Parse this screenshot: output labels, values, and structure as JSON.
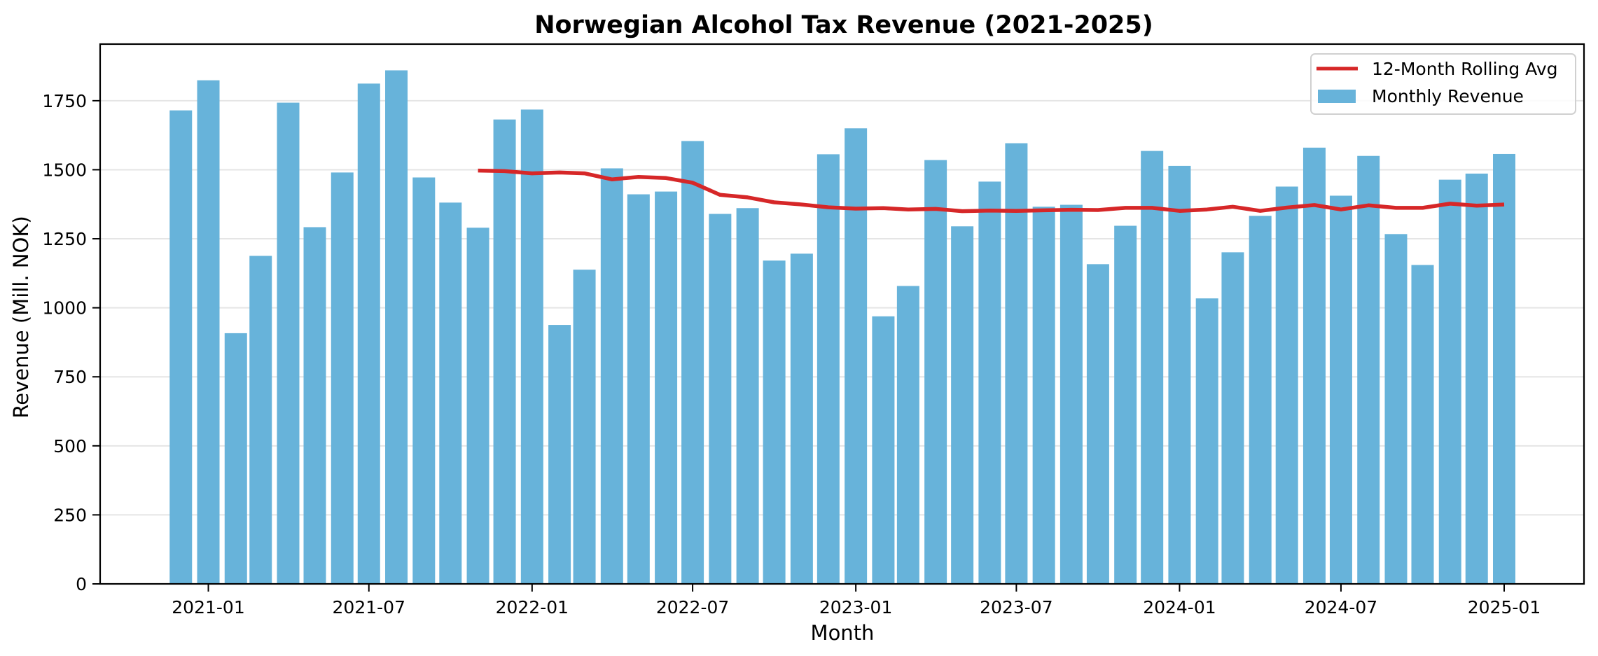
{
  "chart_data": {
    "type": "bar",
    "title": "Norwegian Alcohol Tax Revenue (2021-2025)",
    "xlabel": "Month",
    "ylabel": "Revenue (Mill. NOK)",
    "ylim": [
      0,
      1955
    ],
    "xlim": [
      "2020-09-01",
      "2025-04-01"
    ],
    "grid": "y",
    "legend_position": "top-right",
    "yticks": [
      0,
      250,
      500,
      750,
      1000,
      1250,
      1500,
      1750
    ],
    "ytick_labels": [
      "0",
      "250",
      "500",
      "750",
      "1000",
      "1250",
      "1500",
      "1750"
    ],
    "xticks": [
      "2021-01",
      "2021-07",
      "2022-01",
      "2022-07",
      "2023-01",
      "2023-07",
      "2024-01",
      "2024-07",
      "2025-01"
    ],
    "xtick_labels": [
      "2021-01",
      "2021-07",
      "2022-01",
      "2022-07",
      "2023-01",
      "2023-07",
      "2024-01",
      "2024-07",
      "2025-01"
    ],
    "categories": [
      "2020-12",
      "2021-01",
      "2021-02",
      "2021-03",
      "2021-04",
      "2021-05",
      "2021-06",
      "2021-07",
      "2021-08",
      "2021-09",
      "2021-10",
      "2021-11",
      "2021-12",
      "2022-01",
      "2022-02",
      "2022-03",
      "2022-04",
      "2022-05",
      "2022-06",
      "2022-07",
      "2022-08",
      "2022-09",
      "2022-10",
      "2022-11",
      "2022-12",
      "2023-01",
      "2023-02",
      "2023-03",
      "2023-04",
      "2023-05",
      "2023-06",
      "2023-07",
      "2023-08",
      "2023-09",
      "2023-10",
      "2023-11",
      "2023-12",
      "2024-01",
      "2024-02",
      "2024-03",
      "2024-04",
      "2024-05",
      "2024-06",
      "2024-07",
      "2024-08",
      "2024-09",
      "2024-10",
      "2024-11",
      "2024-12",
      "2025-01"
    ],
    "series": [
      {
        "name": "Monthly Revenue",
        "type": "bar",
        "color": "#67b3da",
        "values": [
          1715,
          1824,
          908,
          1188,
          1743,
          1292,
          1490,
          1812,
          1860,
          1472,
          1381,
          1290,
          1682,
          1718,
          938,
          1138,
          1505,
          1411,
          1421,
          1604,
          1340,
          1361,
          1171,
          1196,
          1556,
          1650,
          969,
          1079,
          1535,
          1295,
          1457,
          1596,
          1366,
          1373,
          1158,
          1297,
          1568,
          1514,
          1034,
          1201,
          1333,
          1439,
          1580,
          1406,
          1550,
          1267,
          1155,
          1464,
          1486,
          1557
        ]
      },
      {
        "name": "12-Month Rolling Avg",
        "type": "line",
        "color": "#d62728",
        "values": [
          null,
          null,
          null,
          null,
          null,
          null,
          null,
          null,
          null,
          null,
          null,
          1497,
          1495,
          1487,
          1490,
          1487,
          1465,
          1474,
          1470,
          1453,
          1409,
          1400,
          1382,
          1374,
          1364,
          1359,
          1361,
          1356,
          1358,
          1350,
          1352,
          1351,
          1353,
          1355,
          1354,
          1362,
          1362,
          1351,
          1356,
          1366,
          1351,
          1363,
          1372,
          1356,
          1371,
          1362,
          1362,
          1377,
          1370,
          1374
        ]
      }
    ]
  },
  "legend": {
    "items": [
      {
        "label": "12-Month Rolling Avg",
        "kind": "line",
        "color": "#d62728"
      },
      {
        "label": "Monthly Revenue",
        "kind": "patch",
        "color": "#67b3da"
      }
    ]
  },
  "style": {
    "grid_color": "#e5e5e5",
    "axis_color": "#000000"
  }
}
